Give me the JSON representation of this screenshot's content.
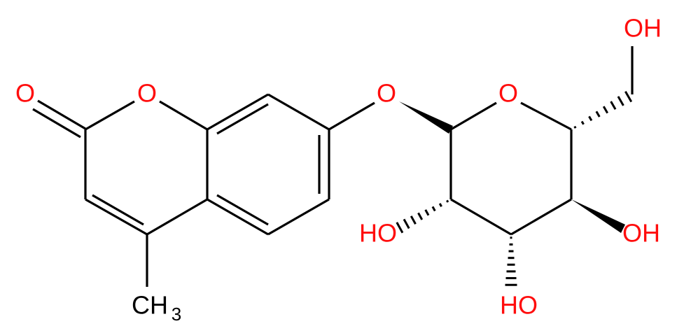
{
  "atoms": [
    "O",
    "O",
    "O",
    "O",
    "OH",
    "HO",
    "OH",
    "HO",
    {
      "text": "CH",
      "subscript": "3"
    }
  ]
}
